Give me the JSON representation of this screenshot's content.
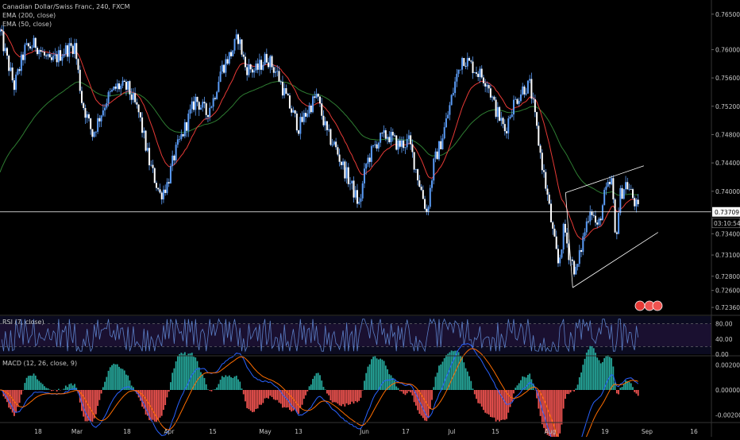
{
  "legend": {
    "symbol": "Canadian Dollar/Swiss Franc, 240, FXCM",
    "ema200": "EMA (200, close)",
    "ema50": "EMA (50, close)"
  },
  "rsi_label": "RSI (7, close)",
  "macd_label": "MACD (12, 26, close, 9)",
  "price_tag": "0.73709",
  "countdown_tag": "03:10:54",
  "colors": {
    "background": "#000000",
    "candle": "#5b9cf6",
    "ema200": "#2e7d32",
    "ema50": "#e53935",
    "rsi_line": "#5b7fc7",
    "macd_line": "#2962ff",
    "signal_line": "#ff6d00",
    "hist_up": "#26a69a",
    "hist_down": "#ef5350",
    "horizontal_line": "#ffffff"
  },
  "chart_data": [
    {
      "type": "candlestick",
      "x_ticks": [
        "18",
        "Mar",
        "18",
        "Apr",
        "15",
        "May",
        "13",
        "Jun",
        "17",
        "Jul",
        "15",
        "Aug",
        "19",
        "Sep",
        "16"
      ],
      "ylim": [
        0.7226,
        0.767
      ],
      "y_ticks": [
        "0.76500",
        "0.76000",
        "0.75600",
        "0.75200",
        "0.74800",
        "0.74400",
        "0.74000",
        "0.73400",
        "0.73100",
        "0.72800",
        "0.72600",
        "0.72360"
      ],
      "price_path": [
        [
          0,
          0.7625
        ],
        [
          0.01,
          0.7585
        ],
        [
          0.02,
          0.7548
        ],
        [
          0.035,
          0.76
        ],
        [
          0.05,
          0.7608
        ],
        [
          0.07,
          0.758
        ],
        [
          0.09,
          0.7598
        ],
        [
          0.105,
          0.7606
        ],
        [
          0.115,
          0.7528
        ],
        [
          0.13,
          0.748
        ],
        [
          0.15,
          0.753
        ],
        [
          0.165,
          0.7548
        ],
        [
          0.18,
          0.7545
        ],
        [
          0.195,
          0.751
        ],
        [
          0.21,
          0.744
        ],
        [
          0.225,
          0.7395
        ],
        [
          0.235,
          0.741
        ],
        [
          0.245,
          0.745
        ],
        [
          0.26,
          0.749
        ],
        [
          0.275,
          0.753
        ],
        [
          0.29,
          0.751
        ],
        [
          0.3,
          0.753
        ],
        [
          0.31,
          0.757
        ],
        [
          0.325,
          0.7595
        ],
        [
          0.335,
          0.7618
        ],
        [
          0.345,
          0.7575
        ],
        [
          0.36,
          0.757
        ],
        [
          0.375,
          0.759
        ],
        [
          0.39,
          0.7565
        ],
        [
          0.405,
          0.7525
        ],
        [
          0.42,
          0.749
        ],
        [
          0.43,
          0.751
        ],
        [
          0.445,
          0.7535
        ],
        [
          0.46,
          0.748
        ],
        [
          0.47,
          0.7465
        ],
        [
          0.48,
          0.744
        ],
        [
          0.495,
          0.7405
        ],
        [
          0.505,
          0.738
        ],
        [
          0.515,
          0.744
        ],
        [
          0.53,
          0.747
        ],
        [
          0.545,
          0.748
        ],
        [
          0.56,
          0.7465
        ],
        [
          0.575,
          0.747
        ],
        [
          0.59,
          0.741
        ],
        [
          0.6,
          0.737
        ],
        [
          0.61,
          0.744
        ],
        [
          0.62,
          0.747
        ],
        [
          0.63,
          0.751
        ],
        [
          0.64,
          0.7555
        ],
        [
          0.65,
          0.759
        ],
        [
          0.66,
          0.758
        ],
        [
          0.67,
          0.757
        ],
        [
          0.685,
          0.7555
        ],
        [
          0.695,
          0.752
        ],
        [
          0.71,
          0.7485
        ],
        [
          0.72,
          0.752
        ],
        [
          0.735,
          0.7545
        ],
        [
          0.745,
          0.755
        ],
        [
          0.76,
          0.745
        ],
        [
          0.77,
          0.739
        ],
        [
          0.778,
          0.7335
        ],
        [
          0.785,
          0.7295
        ],
        [
          0.793,
          0.735
        ],
        [
          0.8,
          0.731
        ],
        [
          0.81,
          0.7285
        ],
        [
          0.82,
          0.7335
        ],
        [
          0.83,
          0.738
        ],
        [
          0.84,
          0.7345
        ],
        [
          0.85,
          0.7395
        ],
        [
          0.86,
          0.7415
        ],
        [
          0.865,
          0.733
        ],
        [
          0.872,
          0.7395
        ],
        [
          0.88,
          0.7412
        ],
        [
          0.89,
          0.739
        ],
        [
          0.897,
          0.7372
        ]
      ]
    },
    {
      "type": "line",
      "name": "RSI (7, close)",
      "ylim": [
        0,
        100
      ],
      "y_ticks": [
        "80.00",
        "40.00",
        "0.00"
      ],
      "bands": [
        80,
        20
      ]
    },
    {
      "type": "line",
      "name": "MACD (12, 26, close, 9)",
      "ylim": [
        -0.0026,
        0.0026
      ],
      "y_ticks": [
        "0.00200",
        "0.00000",
        "-0.00200"
      ]
    }
  ]
}
